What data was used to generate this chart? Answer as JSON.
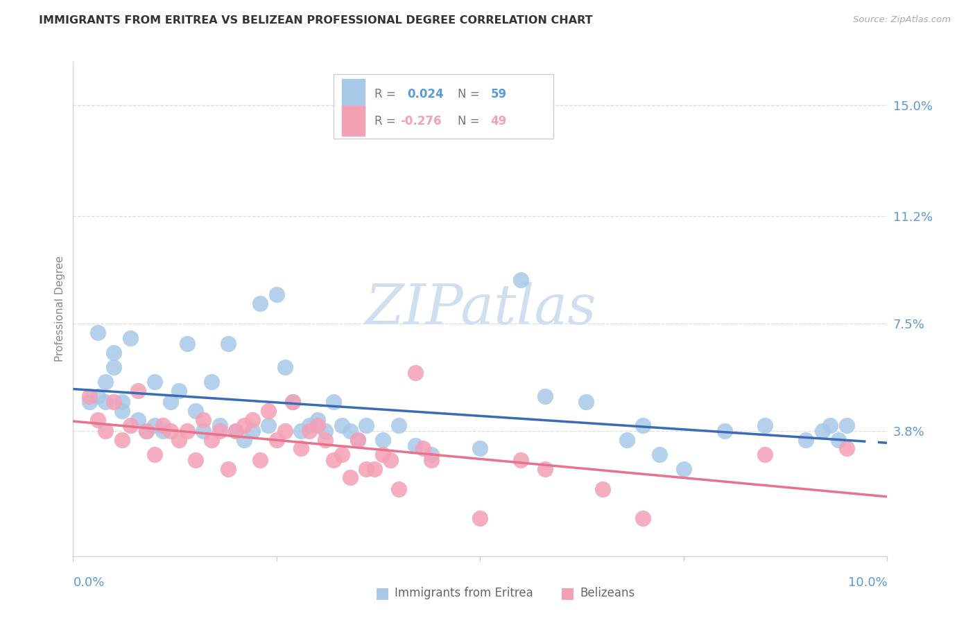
{
  "title": "IMMIGRANTS FROM ERITREA VS BELIZEAN PROFESSIONAL DEGREE CORRELATION CHART",
  "source": "Source: ZipAtlas.com",
  "ylabel": "Professional Degree",
  "ytick_labels": [
    "15.0%",
    "11.2%",
    "7.5%",
    "3.8%"
  ],
  "ytick_values": [
    15.0,
    11.2,
    7.5,
    3.8
  ],
  "xlim": [
    0.0,
    10.0
  ],
  "ylim": [
    -0.5,
    16.5
  ],
  "blue_color": "#A8C8E8",
  "pink_color": "#F4A0B5",
  "line_blue": "#3A6BB5",
  "line_pink": "#E8728A",
  "grid_color": "#DDDDDD",
  "title_color": "#333333",
  "axis_label_color": "#5B9BD5",
  "watermark_color": "#D0DFF0",
  "blue_scatter_x": [
    0.2,
    0.3,
    0.3,
    0.4,
    0.4,
    0.5,
    0.5,
    0.6,
    0.6,
    0.7,
    0.8,
    0.9,
    1.0,
    1.0,
    1.1,
    1.2,
    1.3,
    1.4,
    1.5,
    1.6,
    1.7,
    1.8,
    1.9,
    2.0,
    2.1,
    2.2,
    2.3,
    2.4,
    2.5,
    2.6,
    2.7,
    2.8,
    2.9,
    3.0,
    3.1,
    3.2,
    3.3,
    3.4,
    3.5,
    3.6,
    3.8,
    4.0,
    4.2,
    4.4,
    5.0,
    5.5,
    5.8,
    6.3,
    6.8,
    7.0,
    7.2,
    7.5,
    8.0,
    8.5,
    9.0,
    9.2,
    9.3,
    9.4,
    9.5
  ],
  "blue_scatter_y": [
    4.8,
    5.0,
    7.2,
    5.5,
    4.8,
    6.0,
    6.5,
    4.8,
    4.5,
    7.0,
    4.2,
    3.8,
    5.5,
    4.0,
    3.8,
    4.8,
    5.2,
    6.8,
    4.5,
    3.8,
    5.5,
    4.0,
    6.8,
    3.8,
    3.5,
    3.8,
    8.2,
    4.0,
    8.5,
    6.0,
    4.8,
    3.8,
    4.0,
    4.2,
    3.8,
    4.8,
    4.0,
    3.8,
    3.5,
    4.0,
    3.5,
    4.0,
    3.3,
    3.0,
    3.2,
    9.0,
    5.0,
    4.8,
    3.5,
    4.0,
    3.0,
    2.5,
    3.8,
    4.0,
    3.5,
    3.8,
    4.0,
    3.5,
    4.0
  ],
  "pink_scatter_x": [
    0.2,
    0.3,
    0.4,
    0.5,
    0.6,
    0.7,
    0.8,
    0.9,
    1.0,
    1.1,
    1.2,
    1.3,
    1.4,
    1.5,
    1.6,
    1.7,
    1.8,
    1.9,
    2.0,
    2.1,
    2.2,
    2.3,
    2.4,
    2.5,
    2.6,
    2.7,
    2.8,
    2.9,
    3.0,
    3.1,
    3.2,
    3.3,
    3.4,
    3.5,
    3.6,
    3.7,
    3.8,
    3.9,
    4.0,
    4.2,
    4.3,
    4.4,
    5.0,
    5.5,
    5.8,
    6.5,
    7.0,
    8.5,
    9.5
  ],
  "pink_scatter_y": [
    5.0,
    4.2,
    3.8,
    4.8,
    3.5,
    4.0,
    5.2,
    3.8,
    3.0,
    4.0,
    3.8,
    3.5,
    3.8,
    2.8,
    4.2,
    3.5,
    3.8,
    2.5,
    3.8,
    4.0,
    4.2,
    2.8,
    4.5,
    3.5,
    3.8,
    4.8,
    3.2,
    3.8,
    4.0,
    3.5,
    2.8,
    3.0,
    2.2,
    3.5,
    2.5,
    2.5,
    3.0,
    2.8,
    1.8,
    5.8,
    3.2,
    2.8,
    0.8,
    2.8,
    2.5,
    1.8,
    0.8,
    3.0,
    3.2
  ]
}
